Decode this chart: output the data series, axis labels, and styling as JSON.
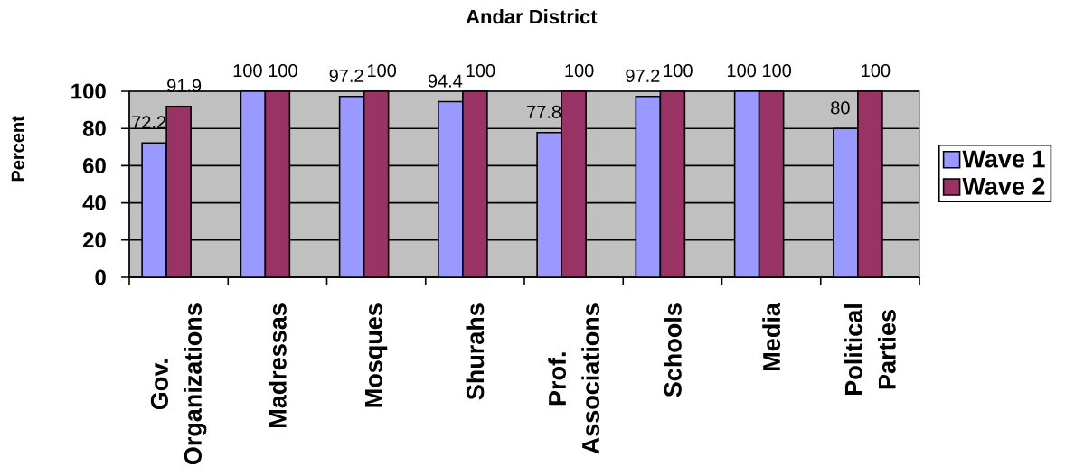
{
  "chart_data": {
    "type": "bar",
    "title": "Andar District",
    "ylabel": "Percent",
    "categories": [
      "Gov. Organizations",
      "Madressas",
      "Mosques",
      "Shurahs",
      "Prof. Associations",
      "Schools",
      "Media",
      "Political Parties"
    ],
    "series": [
      {
        "name": "Wave 1",
        "color": "#9999ff",
        "values": [
          72.2,
          100,
          97.2,
          94.4,
          77.8,
          97.2,
          100,
          80
        ]
      },
      {
        "name": "Wave 2",
        "color": "#993366",
        "values": [
          91.9,
          100,
          100,
          100,
          100,
          100,
          100,
          100
        ]
      }
    ],
    "ylim": [
      0,
      100
    ],
    "yticks": [
      0,
      20,
      40,
      60,
      80,
      100
    ],
    "grid": "y",
    "legend": "right",
    "data_labels": true
  }
}
